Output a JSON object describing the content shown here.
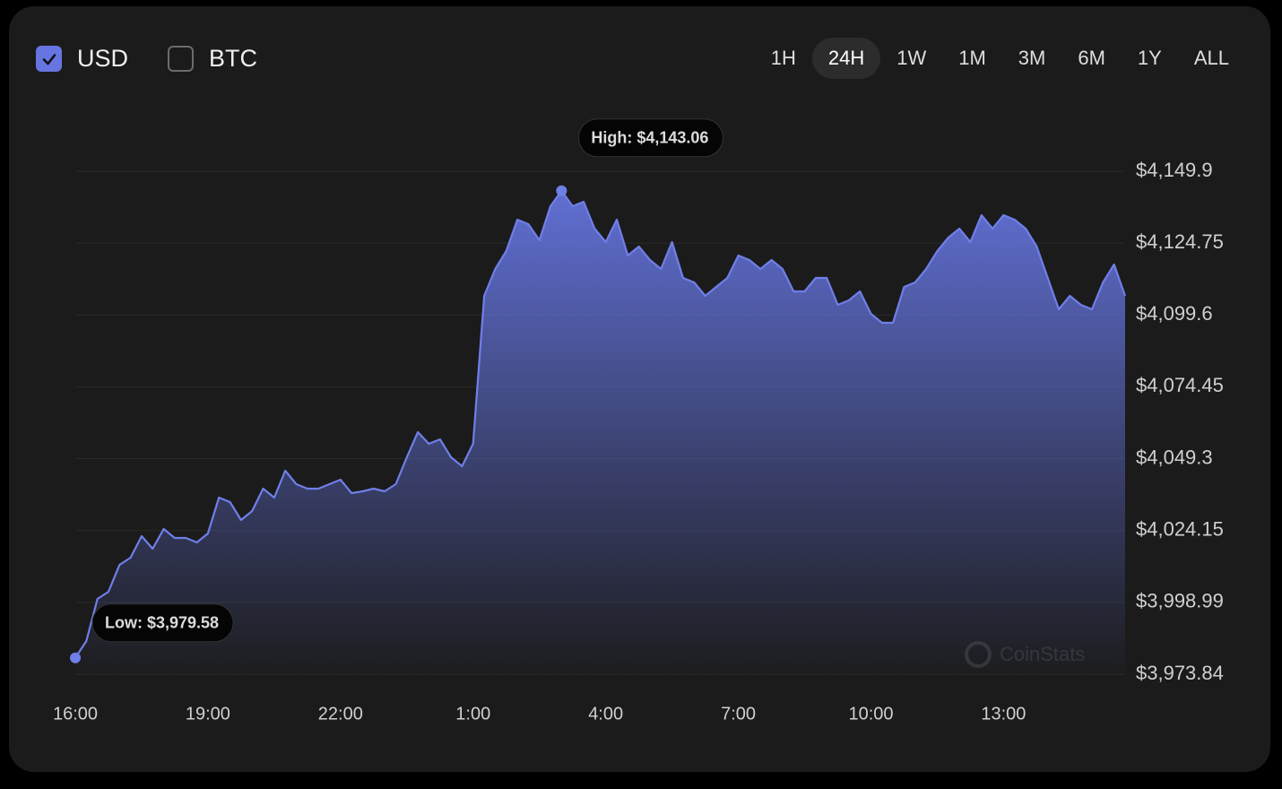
{
  "controls": {
    "currencies": [
      {
        "label": "USD",
        "checked": true
      },
      {
        "label": "BTC",
        "checked": false
      }
    ],
    "ranges": [
      "1H",
      "24H",
      "1W",
      "1M",
      "3M",
      "6M",
      "1Y",
      "ALL"
    ],
    "selected_range": "24H"
  },
  "chart_data": {
    "type": "area",
    "x": [
      "16:00",
      "16:15",
      "16:30",
      "16:45",
      "17:00",
      "17:15",
      "17:30",
      "17:45",
      "18:00",
      "18:15",
      "18:30",
      "18:45",
      "19:00",
      "19:15",
      "19:30",
      "19:45",
      "20:00",
      "20:15",
      "20:30",
      "20:45",
      "21:00",
      "21:15",
      "21:30",
      "21:45",
      "22:00",
      "22:15",
      "22:30",
      "22:45",
      "23:00",
      "23:15",
      "23:30",
      "23:45",
      "0:00",
      "0:15",
      "0:30",
      "0:45",
      "1:00",
      "1:15",
      "1:30",
      "1:45",
      "2:00",
      "2:15",
      "2:30",
      "2:45",
      "3:00",
      "3:15",
      "3:30",
      "3:45",
      "4:00",
      "4:15",
      "4:30",
      "4:45",
      "5:00",
      "5:15",
      "5:30",
      "5:45",
      "6:00",
      "6:15",
      "6:30",
      "6:45",
      "7:00",
      "7:15",
      "7:30",
      "7:45",
      "8:00",
      "8:15",
      "8:30",
      "8:45",
      "9:00",
      "9:15",
      "9:30",
      "9:45",
      "10:00",
      "10:15",
      "10:30",
      "10:45",
      "11:00",
      "11:15",
      "11:30",
      "11:45",
      "12:00",
      "12:15",
      "12:30",
      "12:45",
      "13:00",
      "13:15",
      "13:30",
      "13:45",
      "14:00",
      "14:15",
      "14:30",
      "14:45",
      "15:00",
      "15:15",
      "15:30",
      "15:45"
    ],
    "series": [
      {
        "name": "USD",
        "color": "#6f7fe8",
        "values": [
          3979.58,
          3985.45,
          4000.2,
          4002.71,
          4012.13,
          4014.64,
          4022.17,
          4017.78,
          4024.68,
          4021.54,
          4021.54,
          4019.97,
          4023.11,
          4035.67,
          4034.1,
          4027.82,
          4030.96,
          4038.8,
          4035.67,
          4045.08,
          4040.37,
          4038.8,
          4038.8,
          4040.37,
          4041.94,
          4037.23,
          4037.86,
          4038.8,
          4037.86,
          4040.37,
          4049.79,
          4058.57,
          4054.49,
          4056.06,
          4049.79,
          4046.65,
          4054.49,
          4106.27,
          4115.69,
          4121.96,
          4132.95,
          4131.38,
          4125.73,
          4137.66,
          4143.06,
          4137.66,
          4139.22,
          4129.81,
          4125.1,
          4132.95,
          4120.39,
          4123.54,
          4118.83,
          4115.69,
          4125.1,
          4112.55,
          4110.98,
          4106.27,
          4109.41,
          4112.55,
          4120.39,
          4118.83,
          4115.69,
          4118.83,
          4115.69,
          4107.84,
          4107.84,
          4112.55,
          4112.55,
          4103.13,
          4104.7,
          4107.84,
          4099.99,
          4096.86,
          4096.86,
          4109.41,
          4110.98,
          4115.69,
          4121.96,
          4126.67,
          4129.81,
          4125.1,
          4134.51,
          4129.81,
          4134.51,
          4132.95,
          4129.81,
          4123.54,
          4112.55,
          4101.56,
          4106.27,
          4103.13,
          4101.56,
          4110.98,
          4117.25,
          4106.27
        ]
      }
    ],
    "xticks": [
      "16:00",
      "19:00",
      "22:00",
      "1:00",
      "4:00",
      "7:00",
      "10:00",
      "13:00"
    ],
    "ylim": [
      3973.84,
      4149.9
    ],
    "yticks": [
      {
        "value": 3973.84,
        "label": "$3,973.84"
      },
      {
        "value": 3998.99,
        "label": "$3,998.99"
      },
      {
        "value": 4024.15,
        "label": "$4,024.15"
      },
      {
        "value": 4049.3,
        "label": "$4,049.3"
      },
      {
        "value": 4074.45,
        "label": "$4,074.45"
      },
      {
        "value": 4099.6,
        "label": "$4,099.6"
      },
      {
        "value": 4124.75,
        "label": "$4,124.75"
      },
      {
        "value": 4149.9,
        "label": "$4,149.9"
      }
    ],
    "grid": true,
    "annotations": {
      "high": "High: $4,143.06",
      "low": "Low: $3,979.58"
    },
    "watermark": "CoinStats"
  }
}
